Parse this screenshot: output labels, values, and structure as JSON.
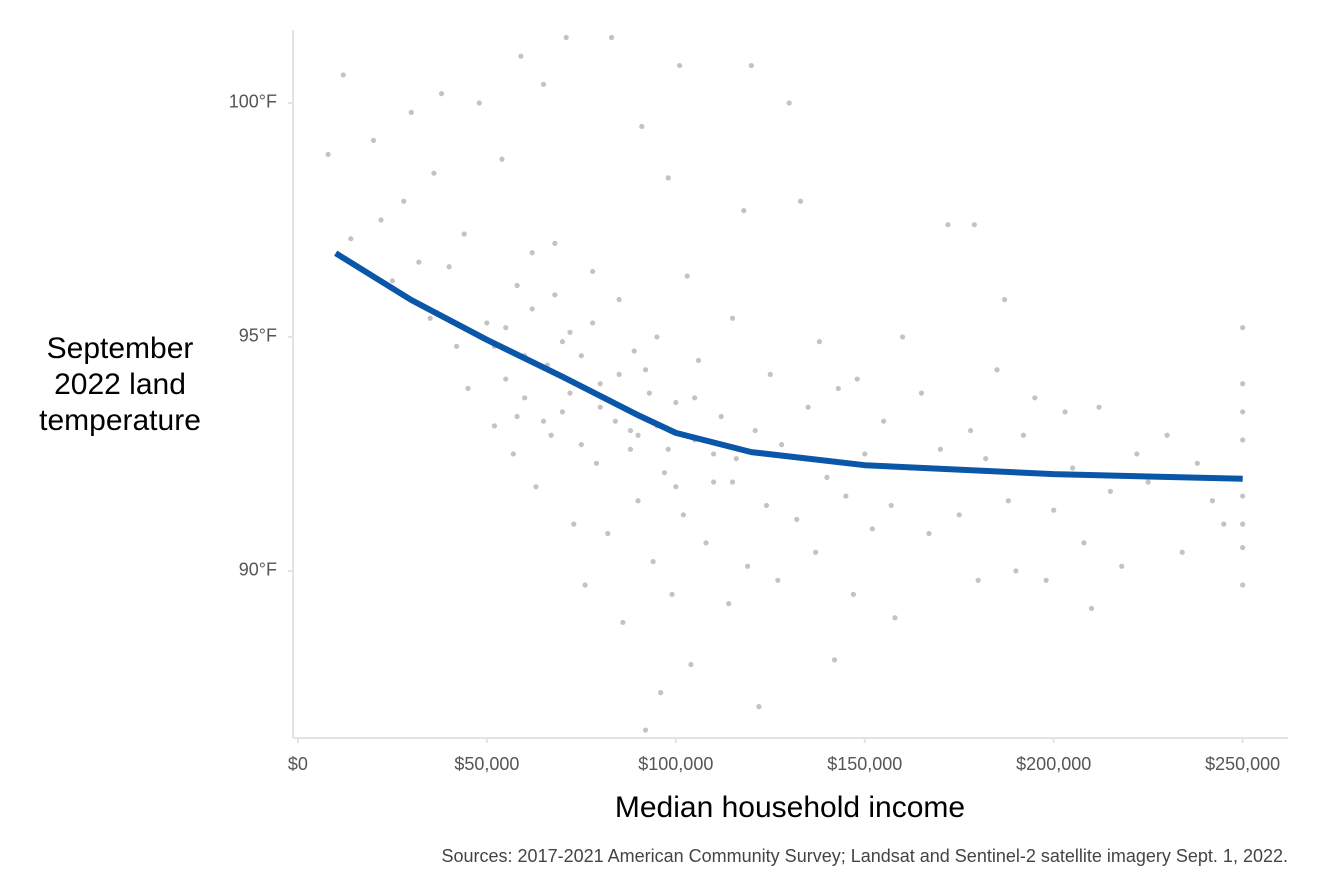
{
  "chart_data": {
    "type": "scatter",
    "y_label": [
      "September",
      "2022 land",
      "temperature"
    ],
    "x_label": "Median household income",
    "source": "Sources: 2017-2021 American Community Survey; Landsat and Sentinel-2 satellite imagery Sept. 1, 2022.",
    "xlim": [
      -1300,
      262000
    ],
    "ylim": [
      86.43,
      101.56
    ],
    "xticks": [
      {
        "value": 0,
        "label": "$0"
      },
      {
        "value": 50000,
        "label": "$50,000"
      },
      {
        "value": 100000,
        "label": "$100,000"
      },
      {
        "value": 150000,
        "label": "$150,000"
      },
      {
        "value": 200000,
        "label": "$200,000"
      },
      {
        "value": 250000,
        "label": "$250,000"
      }
    ],
    "yticks": [
      {
        "value": 90,
        "label": "90°F"
      },
      {
        "value": 95,
        "label": "95°F"
      },
      {
        "value": 100,
        "label": "100°F"
      }
    ],
    "color": "#7a7a7a",
    "x": [
      12000,
      8000,
      14000,
      20000,
      22000,
      25000,
      28000,
      30000,
      32000,
      35000,
      36000,
      38000,
      40000,
      42000,
      44000,
      45000,
      48000,
      50000,
      52000,
      54000,
      55000,
      57000,
      58000,
      59000,
      60000,
      62000,
      63000,
      65000,
      66000,
      67000,
      68000,
      70000,
      71000,
      72000,
      73000,
      75000,
      76000,
      78000,
      79000,
      80000,
      82000,
      83000,
      84000,
      85000,
      86000,
      88000,
      89000,
      90000,
      91000,
      92000,
      93000,
      94000,
      95000,
      96000,
      97000,
      98000,
      99000,
      100000,
      101000,
      102000,
      103000,
      104000,
      105000,
      106000,
      108000,
      110000,
      112000,
      114000,
      115000,
      116000,
      118000,
      119000,
      120000,
      121000,
      122000,
      124000,
      125000,
      127000,
      128000,
      130000,
      132000,
      133000,
      135000,
      137000,
      138000,
      140000,
      142000,
      143000,
      145000,
      147000,
      148000,
      150000,
      152000,
      155000,
      157000,
      158000,
      160000,
      162000,
      165000,
      167000,
      170000,
      172000,
      175000,
      178000,
      179000,
      180000,
      182000,
      185000,
      187000,
      188000,
      190000,
      192000,
      195000,
      198000,
      200000,
      203000,
      205000,
      208000,
      210000,
      212000,
      215000,
      218000,
      222000,
      225000,
      230000,
      234000,
      238000,
      242000,
      245000,
      250000,
      250000,
      250000,
      250000,
      250000,
      250000,
      250000,
      250000,
      55000,
      60000,
      65000,
      70000,
      72000,
      75000,
      78000,
      80000,
      85000,
      88000,
      90000,
      92000,
      95000,
      98000,
      100000,
      105000,
      110000,
      115000,
      62000,
      68000,
      58000,
      52000
    ],
    "values": [
      100.6,
      98.9,
      97.1,
      99.2,
      97.5,
      96.2,
      97.9,
      99.8,
      96.6,
      95.4,
      98.5,
      100.2,
      96.5,
      94.8,
      97.2,
      93.9,
      100.0,
      95.3,
      93.1,
      98.8,
      94.1,
      92.5,
      96.1,
      101.0,
      93.7,
      95.6,
      91.8,
      100.4,
      94.4,
      92.9,
      97.0,
      93.4,
      101.4,
      95.1,
      91.0,
      94.6,
      89.7,
      96.4,
      92.3,
      94.0,
      90.8,
      101.4,
      93.2,
      95.8,
      88.9,
      92.6,
      94.7,
      91.5,
      99.5,
      86.6,
      93.8,
      90.2,
      95.0,
      87.4,
      92.1,
      98.4,
      89.5,
      93.6,
      100.8,
      91.2,
      96.3,
      88.0,
      92.8,
      94.5,
      90.6,
      91.9,
      93.3,
      89.3,
      95.4,
      92.4,
      97.7,
      90.1,
      100.8,
      93.0,
      87.1,
      91.4,
      94.2,
      89.8,
      92.7,
      100.0,
      91.1,
      97.9,
      93.5,
      90.4,
      94.9,
      92.0,
      88.1,
      93.9,
      91.6,
      89.5,
      94.1,
      92.5,
      90.9,
      93.2,
      91.4,
      89.0,
      95.0,
      92.2,
      93.8,
      90.8,
      92.6,
      97.4,
      91.2,
      93.0,
      97.4,
      89.8,
      92.4,
      94.3,
      95.8,
      91.5,
      90.0,
      92.9,
      93.7,
      89.8,
      91.3,
      93.4,
      92.2,
      90.6,
      89.2,
      93.5,
      91.7,
      90.1,
      92.5,
      91.9,
      92.9,
      90.4,
      92.3,
      91.5,
      91.0,
      95.2,
      93.4,
      92.8,
      91.6,
      90.5,
      89.7,
      94.0,
      91.0,
      95.2,
      94.6,
      93.2,
      94.9,
      93.8,
      92.7,
      95.3,
      93.5,
      94.2,
      93.0,
      92.9,
      94.3,
      93.1,
      92.6,
      91.8,
      93.7,
      92.5,
      91.9,
      96.8,
      95.9,
      93.3,
      94.8
    ],
    "trend": {
      "color": "#0a56a8",
      "x": [
        10000,
        30000,
        50000,
        70000,
        90000,
        100000,
        120000,
        150000,
        200000,
        250000
      ],
      "values": [
        96.79,
        95.79,
        94.94,
        94.15,
        93.33,
        92.95,
        92.54,
        92.26,
        92.07,
        91.97
      ]
    }
  }
}
